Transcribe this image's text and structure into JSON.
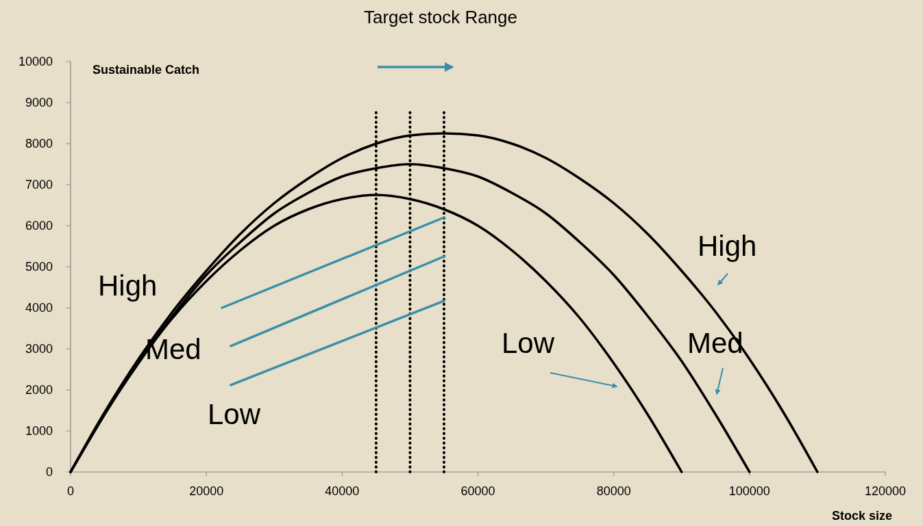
{
  "chart_data": {
    "type": "line",
    "title": "Target stock Range",
    "xlabel": "Stock size",
    "ylabel": "Sustainable Catch",
    "xlim": [
      0,
      120000
    ],
    "ylim": [
      0,
      10000
    ],
    "xticks": [
      0,
      20000,
      40000,
      60000,
      80000,
      100000,
      120000
    ],
    "yticks": [
      0,
      1000,
      2000,
      3000,
      4000,
      5000,
      6000,
      7000,
      8000,
      9000,
      10000
    ],
    "grid": false,
    "marker": "none",
    "line_style": "solid",
    "series": [
      {
        "color": "#000000",
        "x": [
          0,
          5000,
          10000,
          15000,
          20000,
          25000,
          30000,
          35000,
          40000,
          45000,
          50000,
          55000,
          60000,
          65000,
          70000,
          75000,
          80000,
          85000,
          90000
        ],
        "values": [
          0,
          1400,
          2650,
          3750,
          4650,
          5400,
          6000,
          6400,
          6650,
          6750,
          6650,
          6400,
          6000,
          5400,
          4650,
          3750,
          2650,
          1400,
          0
        ]
      },
      {
        "color": "#000000",
        "x": [
          0,
          5000,
          10000,
          15000,
          20000,
          25000,
          30000,
          35000,
          40000,
          45000,
          50000,
          55000,
          60000,
          65000,
          70000,
          75000,
          80000,
          85000,
          90000,
          95000,
          100000
        ],
        "values": [
          0,
          1400,
          2700,
          3800,
          4800,
          5600,
          6300,
          6800,
          7200,
          7400,
          7500,
          7400,
          7200,
          6800,
          6300,
          5600,
          4800,
          3800,
          2700,
          1400,
          0
        ]
      },
      {
        "color": "#000000",
        "x": [
          0,
          5000,
          10000,
          15000,
          20000,
          25000,
          30000,
          35000,
          40000,
          45000,
          50000,
          55000,
          60000,
          65000,
          70000,
          75000,
          80000,
          85000,
          90000,
          95000,
          100000,
          105000,
          110000
        ],
        "values": [
          0,
          1450,
          2750,
          3900,
          4900,
          5800,
          6550,
          7150,
          7650,
          8000,
          8200,
          8250,
          8200,
          8000,
          7650,
          7150,
          6550,
          5800,
          4900,
          3900,
          2750,
          1450,
          0
        ]
      },
      {
        "color": "#3a8fa8",
        "x": [
          22300,
          55000
        ],
        "values": [
          4000,
          6200
        ]
      },
      {
        "color": "#3a8fa8",
        "x": [
          23600,
          55000
        ],
        "values": [
          3070,
          5250
        ]
      },
      {
        "color": "#3a8fa8",
        "x": [
          23600,
          55000
        ],
        "values": [
          2120,
          4170
        ]
      }
    ],
    "ref_lines": [
      {
        "axis": "x",
        "value": 45000,
        "color": "#000000",
        "line_style": "dotted"
      },
      {
        "axis": "x",
        "value": 50000,
        "color": "#000000",
        "line_style": "dotted"
      },
      {
        "axis": "x",
        "value": 55000,
        "color": "#000000",
        "line_style": "dotted"
      }
    ],
    "annotations": [
      "High",
      "Med",
      "Low",
      "High",
      "Med",
      "Low"
    ]
  }
}
